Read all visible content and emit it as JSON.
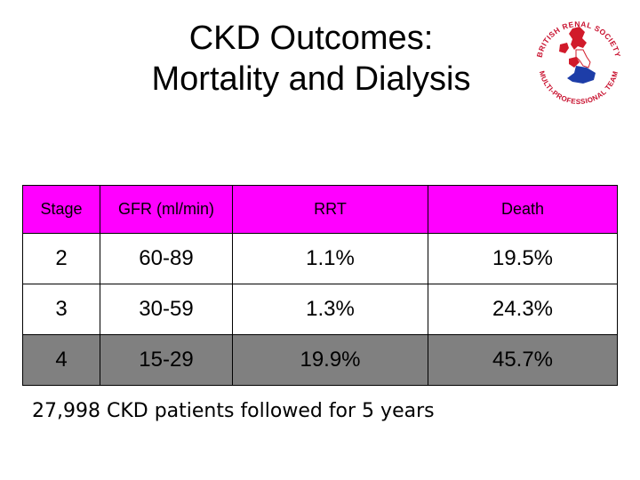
{
  "slide": {
    "title_line1": "CKD Outcomes:",
    "title_line2": "Mortality and Dialysis",
    "footnote": "27,998 CKD patients followed for 5 years"
  },
  "logo": {
    "text_top": "BRITISH RENAL SOCIETY",
    "text_bottom": "MULTI-PROFESSIONAL TEAM",
    "colors": {
      "ring": "#c8102e",
      "map_red": "#d11a2a",
      "map_blue": "#1d3da8",
      "map_white": "#ffffff"
    }
  },
  "table": {
    "header_bg": "#ff00ff",
    "headers": [
      "Stage",
      "GFR (ml/min)",
      "RRT",
      "Death"
    ],
    "rows": [
      {
        "cells": [
          "2",
          "60-89",
          "1.1%",
          "19.5%"
        ],
        "bg": "#ffffff"
      },
      {
        "cells": [
          "3",
          "30-59",
          "1.3%",
          "24.3%"
        ],
        "bg": "#ffffff"
      },
      {
        "cells": [
          "4",
          "15-29",
          "19.9%",
          "45.7%"
        ],
        "bg": "#808080"
      }
    ]
  }
}
